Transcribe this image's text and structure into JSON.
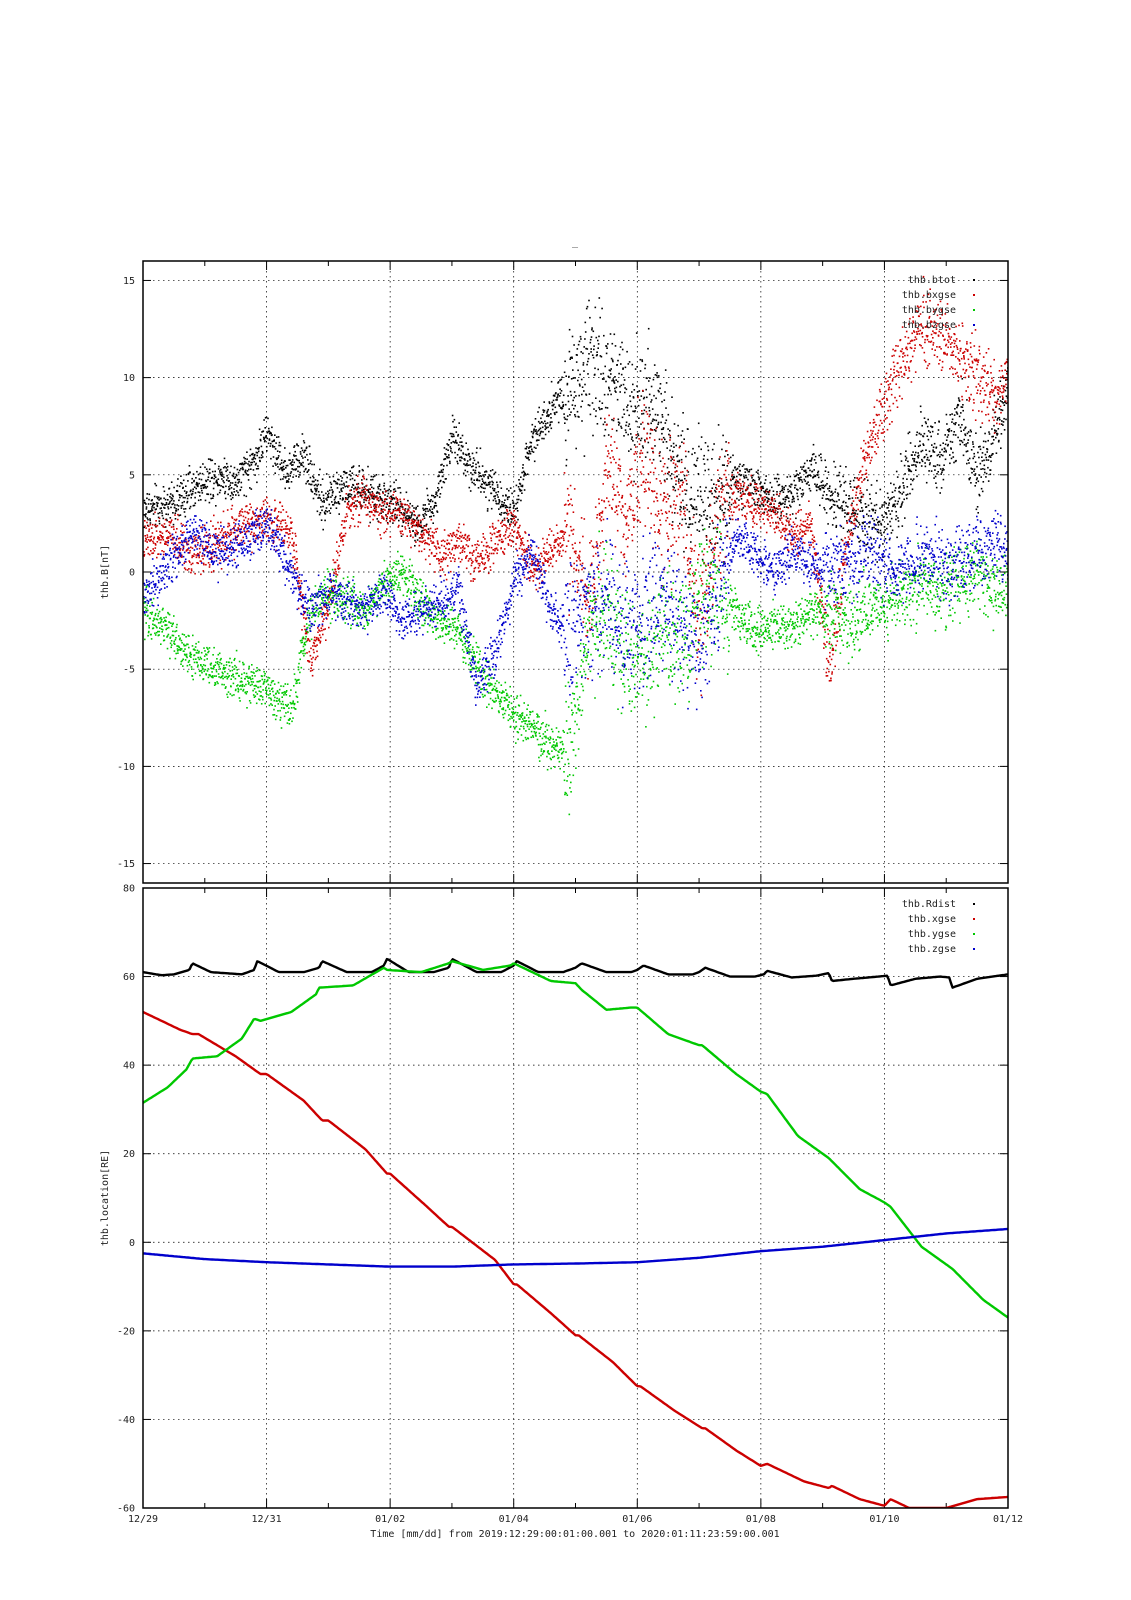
{
  "title": "_",
  "footer": "Time [mm/dd]  from 2019:12:29:00:01:00.001  to  2020:01:11:23:59:00.001",
  "chart_data": [
    {
      "type": "scatter",
      "ylabel": "thb.B[nT]",
      "ylim": [
        -16,
        16
      ],
      "yticks": [
        15,
        10,
        5,
        0,
        -5,
        -10,
        -15
      ],
      "xlim_days": [
        0,
        14
      ],
      "grid": true,
      "legend_position": "top-right",
      "series": [
        {
          "name": "thb.btot",
          "color": "#000000",
          "x": [
            0,
            0.5,
            1,
            1.3,
            1.5,
            1.8,
            2.0,
            2.3,
            2.6,
            2.9,
            3.2,
            3.5,
            3.8,
            4.1,
            4.4,
            4.7,
            5.0,
            5.3,
            5.6,
            6.0,
            6.3,
            6.6,
            6.9,
            7.2,
            7.5,
            7.8,
            8.1,
            8.4,
            8.7,
            9.0,
            9.3,
            9.6,
            9.9,
            10.2,
            10.5,
            10.8,
            11.1,
            11.4,
            11.7,
            12.0,
            12.3,
            12.6,
            12.9,
            13.2,
            13.5,
            13.8,
            14.0
          ],
          "y": [
            3.2,
            3.6,
            4.8,
            5.0,
            4.6,
            5.8,
            7.2,
            5.2,
            6.1,
            3.5,
            4.5,
            4.2,
            3.8,
            3.5,
            2.5,
            3.5,
            7.0,
            5.5,
            4.5,
            3.0,
            7.0,
            8.5,
            9.5,
            10.2,
            10.5,
            9.0,
            8.5,
            8.0,
            4.5,
            3.8,
            3.5,
            5.0,
            4.2,
            3.8,
            4.0,
            5.5,
            4.0,
            3.5,
            2.5,
            3.0,
            4.5,
            7.0,
            6.0,
            8.0,
            5.0,
            7.5,
            9.5
          ]
        },
        {
          "name": "thb.bxgse",
          "color": "#cc0000",
          "x": [
            0,
            0.4,
            0.8,
            1.2,
            1.6,
            2.0,
            2.4,
            2.7,
            3.0,
            3.3,
            3.6,
            3.9,
            4.2,
            4.5,
            4.8,
            5.1,
            5.4,
            5.7,
            6.0,
            6.3,
            6.6,
            6.9,
            7.2,
            7.5,
            7.8,
            8.1,
            8.4,
            8.7,
            9.0,
            9.3,
            9.6,
            9.9,
            10.2,
            10.5,
            10.8,
            11.1,
            11.4,
            11.7,
            12.0,
            12.3,
            12.6,
            12.9,
            13.2,
            13.5,
            13.8,
            14.0
          ],
          "y": [
            1.5,
            2.0,
            1.0,
            1.5,
            2.5,
            2.8,
            2.0,
            -4.5,
            -1.5,
            3.5,
            3.8,
            3.2,
            3.0,
            2.0,
            1.0,
            1.5,
            0.5,
            1.5,
            2.5,
            0.0,
            1.0,
            2.5,
            -2.0,
            5.0,
            3.0,
            6.0,
            3.0,
            4.0,
            -3.0,
            3.0,
            4.0,
            3.5,
            3.0,
            2.0,
            2.5,
            -5.0,
            2.0,
            6.0,
            9.0,
            11.0,
            13.0,
            12.0,
            11.5,
            10.0,
            9.0,
            10.5
          ]
        },
        {
          "name": "thb.bygse",
          "color": "#00c800",
          "x": [
            0,
            0.4,
            0.8,
            1.2,
            1.6,
            2.0,
            2.4,
            2.7,
            3.0,
            3.3,
            3.6,
            3.9,
            4.2,
            4.5,
            4.8,
            5.1,
            5.4,
            5.7,
            6.0,
            6.3,
            6.6,
            6.9,
            7.2,
            7.5,
            7.8,
            8.1,
            8.4,
            8.7,
            9.0,
            9.3,
            9.6,
            9.9,
            10.2,
            10.5,
            10.8,
            11.1,
            11.4,
            11.7,
            12.0,
            12.3,
            12.6,
            12.9,
            13.2,
            13.5,
            13.8,
            14.0
          ],
          "y": [
            -2.0,
            -3.0,
            -4.5,
            -5.0,
            -5.5,
            -6.0,
            -7.0,
            -2.0,
            -1.0,
            -1.5,
            -2.0,
            -0.5,
            0.0,
            -1.5,
            -2.5,
            -3.0,
            -5.0,
            -6.0,
            -7.5,
            -8.0,
            -9.0,
            -9.5,
            -3.0,
            -2.0,
            -4.0,
            -5.0,
            -3.0,
            -4.0,
            -1.5,
            -1.0,
            -2.0,
            -3.0,
            -2.5,
            -3.0,
            -2.0,
            -2.0,
            -2.5,
            -2.0,
            -1.5,
            -1.0,
            -0.5,
            -1.0,
            -0.5,
            0.0,
            -1.0,
            -0.5
          ]
        },
        {
          "name": "thb.bzgse",
          "color": "#0000cc",
          "x": [
            0,
            0.4,
            0.8,
            1.2,
            1.6,
            2.0,
            2.4,
            2.7,
            3.0,
            3.3,
            3.6,
            3.9,
            4.2,
            4.5,
            4.8,
            5.1,
            5.4,
            5.7,
            6.0,
            6.3,
            6.6,
            6.9,
            7.2,
            7.5,
            7.8,
            8.1,
            8.4,
            8.7,
            9.0,
            9.3,
            9.6,
            9.9,
            10.2,
            10.5,
            10.8,
            11.1,
            11.4,
            11.7,
            12.0,
            12.3,
            12.6,
            12.9,
            13.2,
            13.5,
            13.8,
            14.0
          ],
          "y": [
            -1.5,
            0.5,
            2.0,
            1.0,
            1.5,
            2.5,
            0.0,
            -2.0,
            -1.0,
            -1.5,
            -2.0,
            -1.0,
            -2.5,
            -2.0,
            -1.5,
            -1.0,
            -6.0,
            -4.0,
            -0.5,
            1.0,
            -2.0,
            -3.0,
            -2.0,
            -1.5,
            -3.0,
            -2.0,
            -1.5,
            -2.5,
            -4.0,
            -1.0,
            2.0,
            1.0,
            0.0,
            1.0,
            0.5,
            0.0,
            0.5,
            1.0,
            0.5,
            0.0,
            1.0,
            0.5,
            0.5,
            1.0,
            1.5,
            1.0
          ]
        }
      ]
    },
    {
      "type": "line",
      "ylabel": "thb.location[RE]",
      "xlabel": "Time [mm/dd]",
      "ylim": [
        -60,
        80
      ],
      "yticks": [
        80,
        60,
        40,
        20,
        0,
        -20,
        -40,
        -60
      ],
      "xlim_days": [
        0,
        14
      ],
      "xticks": [
        {
          "day": 0,
          "label": "12/29"
        },
        {
          "day": 2,
          "label": "12/31"
        },
        {
          "day": 4,
          "label": "01/02"
        },
        {
          "day": 6,
          "label": "01/04"
        },
        {
          "day": 8,
          "label": "01/06"
        },
        {
          "day": 10,
          "label": "01/08"
        },
        {
          "day": 12,
          "label": "01/10"
        },
        {
          "day": 14,
          "label": "01/12"
        }
      ],
      "grid": true,
      "legend_position": "top-right",
      "series": [
        {
          "name": "thb.Rdist",
          "color": "#000000",
          "x": [
            0,
            0.3,
            0.5,
            0.75,
            0.8,
            1.1,
            1.6,
            1.8,
            1.85,
            2.2,
            2.6,
            2.85,
            2.9,
            3.3,
            3.7,
            3.9,
            3.95,
            4.3,
            4.7,
            4.95,
            5.0,
            5.4,
            5.8,
            6.0,
            6.05,
            6.4,
            6.8,
            7.0,
            7.1,
            7.5,
            7.9,
            8.0,
            8.1,
            8.5,
            8.9,
            9.0,
            9.1,
            9.5,
            9.9,
            10.05,
            10.1,
            10.5,
            10.9,
            11.1,
            11.15,
            11.5,
            11.9,
            12.05,
            12.1,
            12.5,
            12.9,
            13.05,
            13.1,
            13.5,
            14.0
          ],
          "y": [
            61,
            60.3,
            60.5,
            61.5,
            63,
            61,
            60.5,
            61.5,
            63.5,
            61,
            61,
            62,
            63.5,
            61,
            61,
            62.5,
            64,
            61,
            61,
            62,
            64,
            61,
            61,
            62.5,
            63.5,
            61,
            61,
            62,
            63,
            61,
            61,
            61.5,
            62.5,
            60.5,
            60.5,
            61,
            62,
            60,
            60,
            60.5,
            61.3,
            59.8,
            60.2,
            60.8,
            59,
            59.5,
            60,
            60.2,
            58,
            59.5,
            60,
            59.8,
            57.5,
            59.5,
            60.5
          ]
        },
        {
          "name": "thb.xgse",
          "color": "#cc0000",
          "x": [
            0,
            0.6,
            0.8,
            0.9,
            1.5,
            1.9,
            2.0,
            2.6,
            2.9,
            3.0,
            3.6,
            3.95,
            4.0,
            4.6,
            4.95,
            5.0,
            5.7,
            6.0,
            6.05,
            6.6,
            7.0,
            7.05,
            7.6,
            8.0,
            8.05,
            8.6,
            9.05,
            9.1,
            9.6,
            10.0,
            10.1,
            10.7,
            11.1,
            11.15,
            11.6,
            12.0,
            12.1,
            12.4,
            12.9,
            13.0,
            13.5,
            14.0
          ],
          "y": [
            52,
            48,
            47,
            47,
            42,
            38,
            38,
            32,
            27.5,
            27.5,
            21,
            15.5,
            15.5,
            8,
            3.5,
            3.5,
            -4,
            -9.5,
            -9.5,
            -16,
            -21,
            -21,
            -27,
            -32.5,
            -32.5,
            -38,
            -42,
            -42,
            -47,
            -50.5,
            -50,
            -54,
            -55.5,
            -55,
            -58,
            -59.5,
            -58,
            -60,
            -60,
            -60,
            -58,
            -57.5
          ]
        },
        {
          "name": "thb.ygse",
          "color": "#00c800",
          "x": [
            0,
            0.4,
            0.7,
            0.8,
            1.2,
            1.6,
            1.8,
            1.9,
            2.4,
            2.8,
            2.85,
            3.4,
            3.9,
            3.95,
            4.5,
            4.95,
            5.0,
            5.5,
            5.95,
            6.0,
            6.6,
            7.0,
            7.1,
            7.5,
            7.9,
            8.0,
            8.5,
            9.0,
            9.05,
            9.6,
            10.0,
            10.1,
            10.6,
            11.0,
            11.1,
            11.6,
            12.0,
            12.1,
            12.6,
            13.0,
            13.1,
            13.6,
            14.0
          ],
          "y": [
            31.5,
            35,
            39,
            41.5,
            42,
            46,
            50.5,
            50,
            52,
            56,
            57.5,
            58,
            62,
            61.5,
            61,
            63,
            63.5,
            61.5,
            62.5,
            63,
            59,
            58.5,
            57,
            52.5,
            53,
            53,
            47,
            44.5,
            44.5,
            38,
            34,
            33.5,
            24,
            20,
            19,
            12,
            9,
            8,
            -1,
            -5,
            -6,
            -13,
            -17
          ]
        },
        {
          "name": "thb.zgse",
          "color": "#0000cc",
          "x": [
            0,
            1,
            2,
            3,
            4,
            5,
            6,
            7,
            8,
            9,
            10,
            11,
            12,
            13,
            14
          ],
          "y": [
            -2.5,
            -3.8,
            -4.5,
            -5.0,
            -5.5,
            -5.5,
            -5.0,
            -4.8,
            -4.5,
            -3.5,
            -2.0,
            -1.0,
            0.5,
            2.0,
            3.0
          ]
        }
      ]
    }
  ]
}
